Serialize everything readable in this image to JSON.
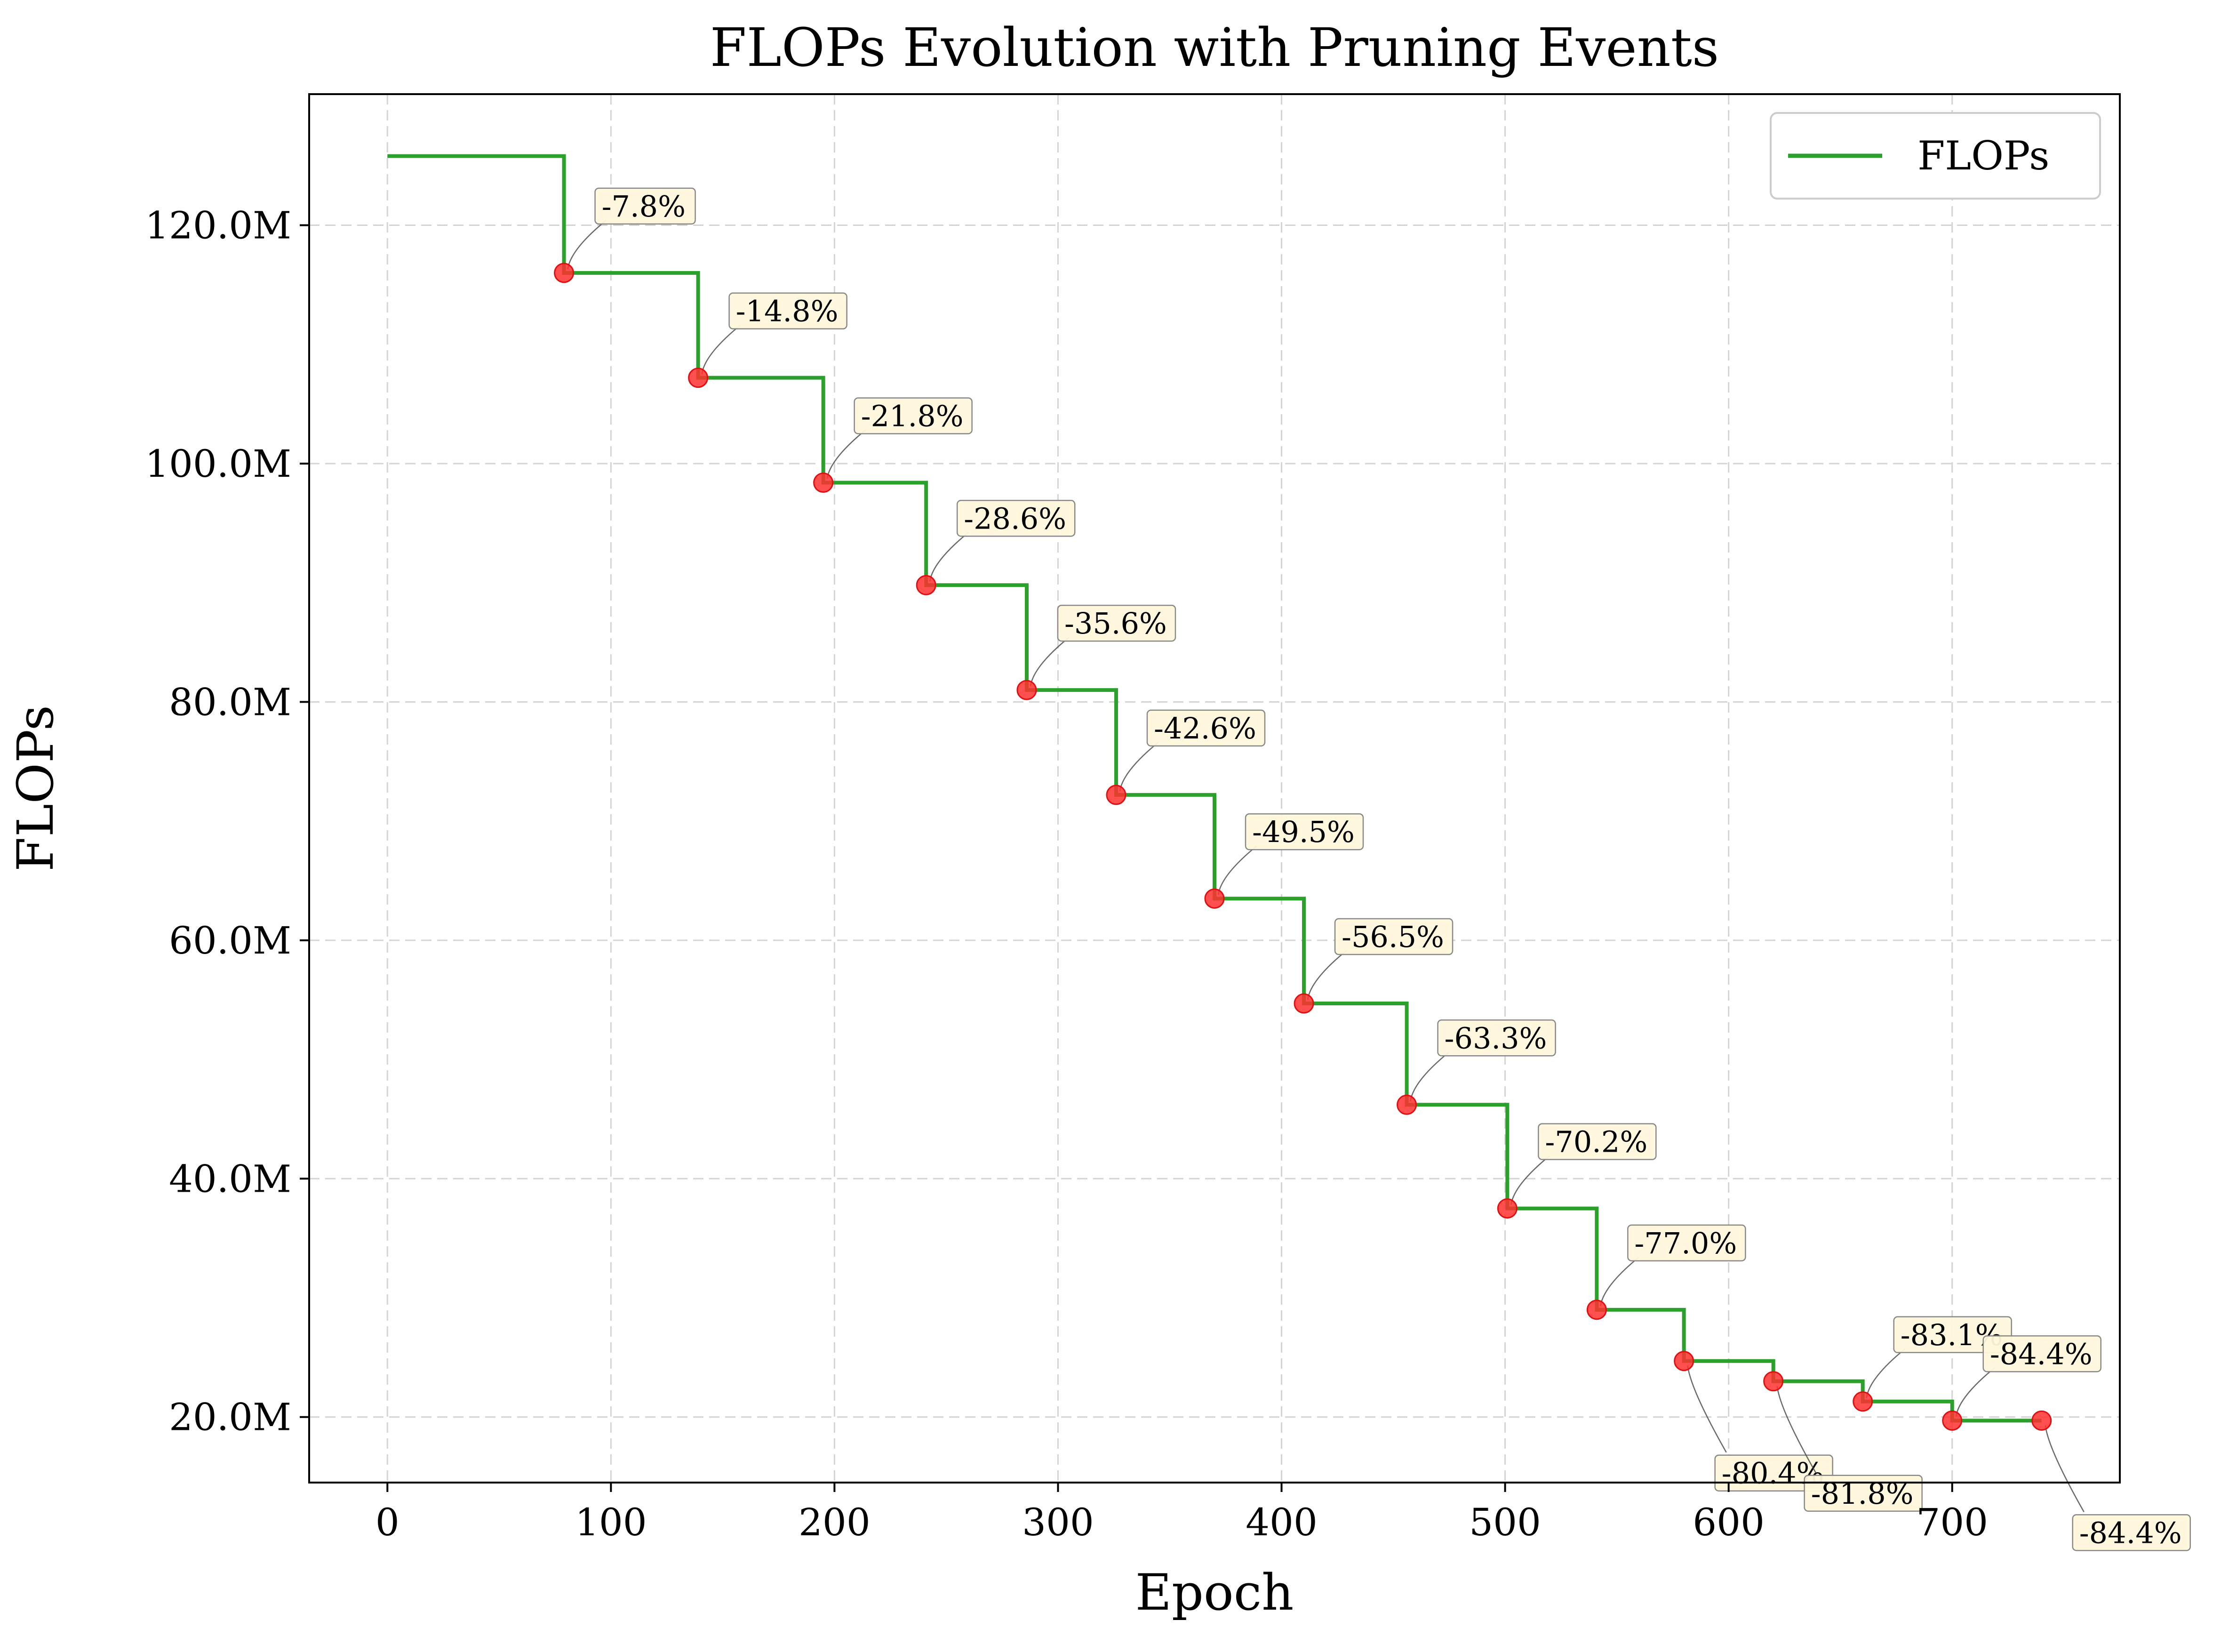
{
  "chart_data": {
    "type": "line",
    "title": "FLOPs Evolution with Pruning Events",
    "xlabel": "Epoch",
    "ylabel": "FLOPs",
    "xlim": [
      -35,
      775
    ],
    "ylim": [
      14.5,
      131.0
    ],
    "x_ticks": [
      0,
      100,
      200,
      300,
      400,
      500,
      600,
      700
    ],
    "x_tick_labels": [
      "0",
      "100",
      "200",
      "300",
      "400",
      "500",
      "600",
      "700"
    ],
    "y_ticks": [
      20,
      40,
      60,
      80,
      100,
      120
    ],
    "y_tick_labels": [
      "20.0M",
      "40.0M",
      "60.0M",
      "80.0M",
      "100.0M",
      "120.0M"
    ],
    "y_unit": "M",
    "grid": true,
    "legend_position": "top-right",
    "series": [
      {
        "name": "FLOPs",
        "color": "#2ca02c",
        "line_style": "step",
        "x": [
          0,
          79,
          139,
          195,
          241,
          286,
          326,
          370,
          410,
          456,
          501,
          541,
          580,
          620,
          660,
          700,
          740
        ],
        "values": [
          125.8,
          116.0,
          107.2,
          98.4,
          89.8,
          81.0,
          72.2,
          63.5,
          54.7,
          46.2,
          37.5,
          29.0,
          24.7,
          23.0,
          21.3,
          19.7,
          19.7
        ]
      }
    ],
    "pruning_events": {
      "marker_color": "#ff2020",
      "x": [
        79,
        139,
        195,
        241,
        286,
        326,
        370,
        410,
        456,
        501,
        541,
        580,
        620,
        660,
        700,
        740
      ],
      "values": [
        116.0,
        107.2,
        98.4,
        89.8,
        81.0,
        72.2,
        63.5,
        54.7,
        46.2,
        37.5,
        29.0,
        24.7,
        23.0,
        21.3,
        19.7,
        19.7
      ],
      "labels": [
        "-7.8%",
        "-14.8%",
        "-21.8%",
        "-28.6%",
        "-35.6%",
        "-42.6%",
        "-49.5%",
        "-56.5%",
        "-63.3%",
        "-70.2%",
        "-77.0%",
        "-80.4%",
        "-81.8%",
        "-83.1%",
        "-84.4%",
        "-84.4%"
      ],
      "label_side": [
        "above",
        "above",
        "above",
        "above",
        "above",
        "above",
        "above",
        "above",
        "above",
        "above",
        "above",
        "below",
        "below",
        "above",
        "above",
        "below"
      ]
    }
  }
}
